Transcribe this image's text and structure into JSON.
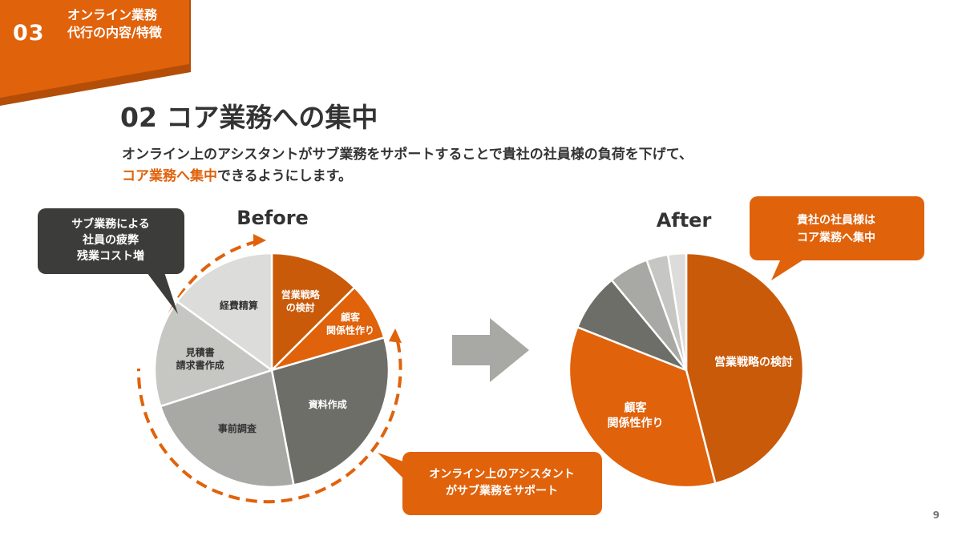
{
  "section": {
    "number": "03",
    "title": "オンライン業務代行の内容/特徴"
  },
  "slide": {
    "title": "02  コア業務への集中",
    "lead_line1": "オンライン上のアシスタントがサブ業務をサポートすることで貴社の社員様の負荷を下げて、",
    "lead_highlight": "コア業務へ集中",
    "lead_rest": "できるようにします。"
  },
  "callouts": {
    "before_issue": [
      "サブ業務による",
      "社員の疲弊",
      "残業コスト増"
    ],
    "assistant_support": [
      "オンライン上のアシスタント",
      "がサブ業務をサポート"
    ],
    "after_focus": [
      "貴社の社員様は",
      "コア業務へ集中"
    ]
  },
  "colors": {
    "accent": "#e0620b",
    "accent_dark": "#c95a0a",
    "dark_callout": "#3c3c3a",
    "arrow": "#a8a8a4"
  },
  "icons": [
    "right-arrow-icon",
    "circular-arrow-icon"
  ],
  "page_number": "9",
  "chart_data": [
    {
      "type": "pie",
      "title": "Before",
      "slices": [
        {
          "label": [
            "営業戦略",
            "の検討"
          ],
          "value": 12.5,
          "color": "#c95a0a"
        },
        {
          "label": [
            "顧客",
            "関係性作り"
          ],
          "value": 8,
          "color": "#e0620b"
        },
        {
          "label": [
            "資料作成"
          ],
          "value": 26.5,
          "color": "#6e6e69"
        },
        {
          "label": [
            "事前調査"
          ],
          "value": 23,
          "color": "#a8a8a4"
        },
        {
          "label": [
            "見積書",
            "請求書作成"
          ],
          "value": 15,
          "color": "#c6c6c3"
        },
        {
          "label": [
            "経費精算"
          ],
          "value": 15,
          "color": "#dcdcda"
        }
      ]
    },
    {
      "type": "pie",
      "title": "After",
      "slices": [
        {
          "label": [
            "営業戦略の検討"
          ],
          "value": 46,
          "color": "#c95a0a"
        },
        {
          "label": [
            "顧客",
            "関係性作り"
          ],
          "value": 35,
          "color": "#e0620b"
        },
        {
          "label": [
            ""
          ],
          "value": 8,
          "color": "#6e6e69"
        },
        {
          "label": [
            ""
          ],
          "value": 5.5,
          "color": "#a8a8a4"
        },
        {
          "label": [
            ""
          ],
          "value": 3,
          "color": "#c6c6c3"
        },
        {
          "label": [
            ""
          ],
          "value": 2.5,
          "color": "#dcdcda"
        }
      ]
    }
  ]
}
